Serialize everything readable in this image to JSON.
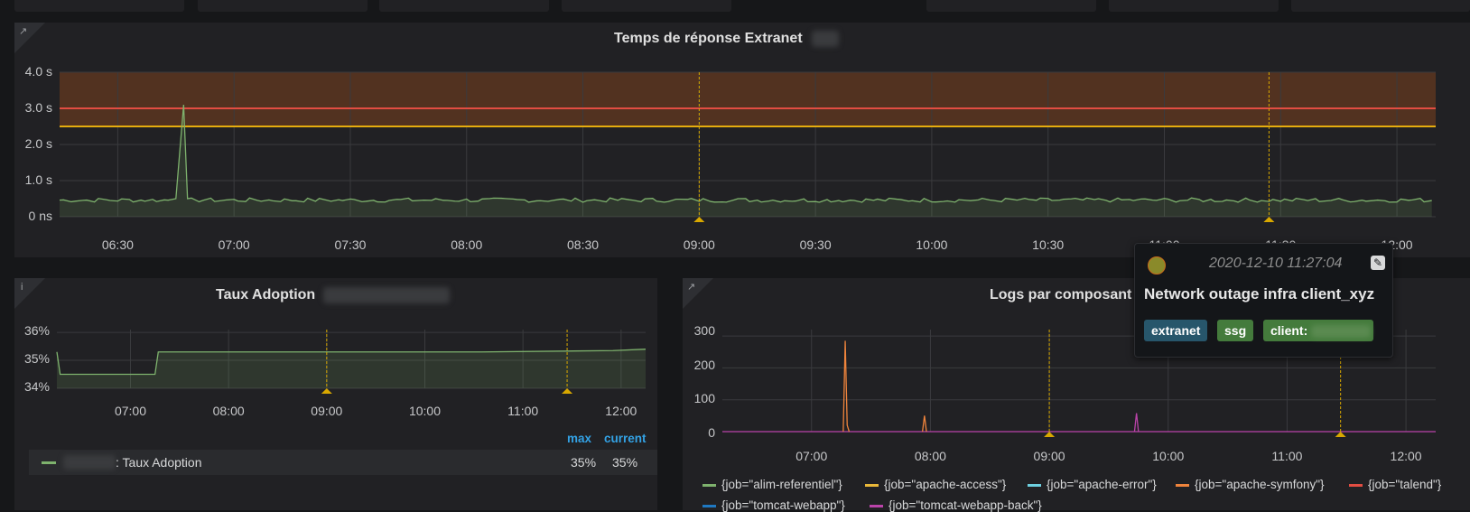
{
  "colors": {
    "background": "#161719",
    "panel": "#212124",
    "series_green": "#7eb26d",
    "series_orange": "#ef843c",
    "series_magenta": "#ba43a9",
    "threshold_critical": "#e24d42",
    "threshold_warning": "#e5ac0e",
    "annotation": "#d8a800",
    "legend_header": "#33a2e5"
  },
  "top_panel": {
    "title": "Temps de réponse Extranet",
    "link_icon": "external-link-icon",
    "y_ticks": [
      "4.0 s",
      "3.0 s",
      "2.0 s",
      "1.0 s",
      "0 ns"
    ],
    "x_ticks": [
      "06:30",
      "07:00",
      "07:30",
      "08:00",
      "08:30",
      "09:00",
      "09:30",
      "10:00",
      "10:30",
      "11:00",
      "11:30",
      "12:00"
    ],
    "chart_data": {
      "type": "line",
      "ylabel": "",
      "xlabel": "",
      "ylim": [
        0,
        4
      ],
      "y_unit": "s",
      "grid": true,
      "thresholds": [
        {
          "value": 3.0,
          "color": "#e24d42"
        },
        {
          "value": 2.5,
          "color": "#e5ac0e"
        }
      ],
      "threshold_region_from": 2.5,
      "annotations_x": [
        "09:00",
        "11:27"
      ],
      "series": [
        {
          "x": [
            "06:15",
            "06:30",
            "06:40",
            "06:45",
            "06:47",
            "07:00",
            "07:30",
            "08:00",
            "08:30",
            "09:00",
            "09:30",
            "10:00",
            "10:30",
            "11:00",
            "11:30",
            "12:00",
            "12:10"
          ],
          "values": [
            0.45,
            0.45,
            0.42,
            0.48,
            3.1,
            0.46,
            0.45,
            0.48,
            0.45,
            0.46,
            0.47,
            0.5,
            0.45,
            0.47,
            0.48,
            0.48,
            0.5
          ]
        }
      ]
    }
  },
  "tooltip": {
    "timestamp": "2020-12-10 11:27:04",
    "text": "Network outage infra client_xyz",
    "tags": [
      "extranet",
      "ssg",
      "client:"
    ],
    "tag_colors": [
      "#27566b",
      "#447b3c",
      "#447b3c"
    ]
  },
  "left_panel": {
    "title": "Taux Adoption",
    "info_icon": "info-icon",
    "y_ticks": [
      "36%",
      "35%",
      "34%"
    ],
    "x_ticks": [
      "07:00",
      "08:00",
      "09:00",
      "10:00",
      "11:00",
      "12:00"
    ],
    "legend_headers": [
      "max",
      "current"
    ],
    "legend_series_label": ": Taux Adoption",
    "legend_max": "35%",
    "legend_current": "35%",
    "chart_data": {
      "type": "line",
      "ylim": [
        34,
        36
      ],
      "y_unit": "%",
      "grid": true,
      "annotations_x": [
        "09:00",
        "11:27"
      ],
      "series": [
        {
          "x": [
            "06:15",
            "06:17",
            "07:15",
            "07:17",
            "10:35",
            "11:55",
            "12:15"
          ],
          "values": [
            35.3,
            34.5,
            34.5,
            35.3,
            35.3,
            35.35,
            35.4
          ]
        }
      ]
    }
  },
  "right_panel": {
    "title": "Logs par composant",
    "link_icon": "external-link-icon",
    "y_ticks": [
      "300",
      "200",
      "100",
      "0"
    ],
    "x_ticks": [
      "07:00",
      "08:00",
      "09:00",
      "10:00",
      "11:00",
      "12:00"
    ],
    "legend": [
      {
        "label": "{job=\"alim-referentiel\"}",
        "color": "#7eb26d"
      },
      {
        "label": "{job=\"apache-access\"}",
        "color": "#eab839"
      },
      {
        "label": "{job=\"apache-error\"}",
        "color": "#6ed0e0"
      },
      {
        "label": "{job=\"apache-symfony\"}",
        "color": "#ef843c"
      },
      {
        "label": "{job=\"talend\"}",
        "color": "#e24d42"
      },
      {
        "label": "{job=\"tomcat-webapp\"}",
        "color": "#1f78c1"
      },
      {
        "label": "{job=\"tomcat-webapp-back\"}",
        "color": "#ba43a9"
      }
    ],
    "chart_data": {
      "type": "line",
      "ylim": [
        0,
        300
      ],
      "grid": true,
      "annotations_x": [
        "09:00",
        "11:27"
      ],
      "series": [
        {
          "name": "{job=\"apache-symfony\"}",
          "x": [
            "07:16",
            "07:17",
            "07:18",
            "07:19"
          ],
          "values": [
            0,
            285,
            20,
            0
          ]
        },
        {
          "name": "{job=\"apache-symfony\"}",
          "x": [
            "07:56",
            "07:57",
            "07:58"
          ],
          "values": [
            0,
            50,
            0
          ]
        },
        {
          "name": "{job=\"tomcat-webapp-back\"}",
          "x": [
            "09:43",
            "09:44",
            "09:45"
          ],
          "values": [
            0,
            58,
            0
          ]
        }
      ]
    }
  }
}
